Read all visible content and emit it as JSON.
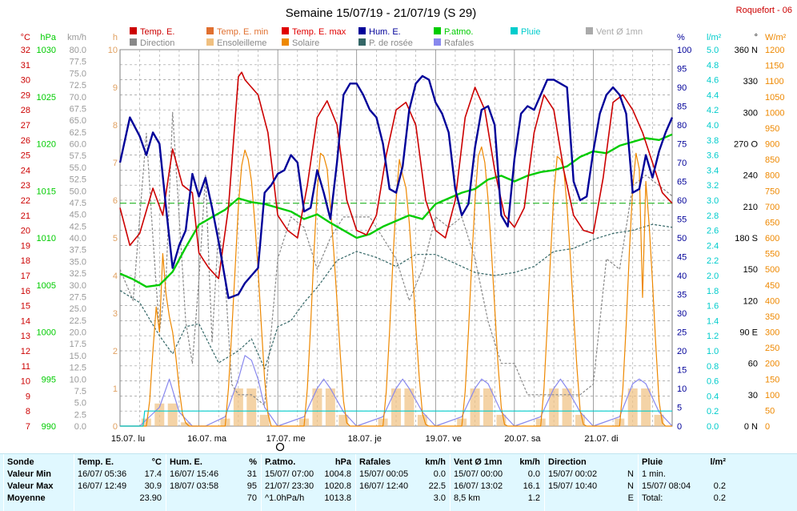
{
  "title": "Semaine 15/07/19 - 21/07/19 (S 29)",
  "station": "Roquefort - 06",
  "colors": {
    "temp": "#cc0000",
    "temp_min": "#e07030",
    "temp_max": "#e00000",
    "humidity": "#000099",
    "pressure": "#00cc00",
    "rain": "#00cccc",
    "direction": "#888888",
    "sunshine": "#f0c080",
    "solar": "#ee8800",
    "dewpoint": "#336666",
    "gusts": "#8888ee",
    "wind_avg": "#aaaaaa"
  },
  "legend": [
    {
      "label": "Temp. E.",
      "color": "#cc0000"
    },
    {
      "label": "Temp. E. min",
      "color": "#e07030"
    },
    {
      "label": "Temp. E. max",
      "color": "#e00000"
    },
    {
      "label": "Hum. E.",
      "color": "#000099"
    },
    {
      "label": "P.atmo.",
      "color": "#00cc00"
    },
    {
      "label": "Pluie",
      "color": "#00cccc"
    },
    {
      "label": "Vent Ø 1mn",
      "color": "#aaaaaa"
    },
    {
      "label": "Direction",
      "color": "#888888"
    },
    {
      "label": "Ensoleilleme",
      "color": "#f0c080"
    },
    {
      "label": "Solaire",
      "color": "#ee8800"
    },
    {
      "label": "P. de rosée",
      "color": "#336666"
    },
    {
      "label": "Rafales",
      "color": "#8888ee"
    }
  ],
  "chart_data": {
    "type": "line",
    "title": "Semaine 15/07/19 - 21/07/19 (S 29)",
    "x_categories": [
      "15.07. lu",
      "16.07. ma",
      "17.07. me",
      "18.07. je",
      "19.07. ve",
      "20.07. sa",
      "21.07. di"
    ],
    "x_unit": "hours since start of week",
    "x_range": [
      0,
      168
    ],
    "grid": true,
    "reference_line_temp": 21.8,
    "axes": {
      "temp": {
        "unit": "°C",
        "range": [
          7,
          32
        ],
        "step": 1
      },
      "pressure": {
        "unit": "hPa",
        "range": [
          990,
          1030
        ],
        "step": 5
      },
      "wind": {
        "unit": "km/h",
        "range": [
          0,
          80
        ],
        "step": 2.5
      },
      "sunshine": {
        "unit": "h",
        "range": [
          0,
          10
        ],
        "step": 1
      },
      "humidity": {
        "unit": "%",
        "range": [
          0,
          100
        ],
        "step": 5
      },
      "rain": {
        "unit": "l/m²",
        "range": [
          0,
          5
        ],
        "step": 0.2
      },
      "direction": {
        "unit": "°",
        "ticks": [
          "0 N",
          "30",
          "60",
          "90 E",
          "120",
          "150",
          "180 S",
          "210",
          "240",
          "270 O",
          "300",
          "330",
          "360 N"
        ]
      },
      "solar": {
        "unit": "W/m²",
        "range": [
          0,
          1200
        ],
        "step": 50
      }
    },
    "series": [
      {
        "name": "Temp. E.",
        "axis": "temp",
        "x": [
          0,
          3,
          6,
          10,
          13,
          16,
          19,
          22,
          24,
          27,
          30,
          33,
          36,
          37,
          38,
          42,
          45,
          48,
          51,
          54,
          57,
          60,
          63,
          66,
          69,
          72,
          75,
          78,
          81,
          84,
          87,
          90,
          93,
          96,
          99,
          102,
          105,
          108,
          111,
          114,
          117,
          120,
          123,
          126,
          129,
          132,
          135,
          138,
          141,
          144,
          147,
          150,
          153,
          156,
          159,
          162,
          165,
          168
        ],
        "y": [
          21.5,
          19.0,
          19.8,
          22.8,
          21.0,
          25.4,
          23.0,
          22.5,
          18.5,
          17.5,
          16.8,
          21.5,
          30.2,
          30.5,
          30.0,
          29.0,
          26.5,
          21.0,
          20.0,
          19.5,
          23.0,
          27.5,
          28.6,
          27.0,
          22.0,
          20.0,
          19.7,
          21.0,
          25.0,
          28.0,
          28.5,
          27.0,
          22.0,
          20.0,
          19.5,
          22.0,
          27.5,
          29.5,
          28.0,
          24.0,
          21.0,
          20.2,
          21.5,
          26.5,
          29.0,
          28.0,
          24.0,
          21.0,
          20.0,
          19.8,
          23.5,
          28.5,
          29.0,
          28.0,
          26.5,
          24.5,
          22.5,
          21.8
        ]
      },
      {
        "name": "Hum. E.",
        "axis": "humidity",
        "x": [
          0,
          3,
          6,
          8,
          10,
          12,
          14,
          16,
          18,
          20,
          22,
          24,
          26,
          28,
          30,
          33,
          36,
          38,
          40,
          42,
          44,
          46,
          48,
          50,
          52,
          54,
          56,
          58,
          60,
          62,
          64,
          66,
          68,
          70,
          72,
          74,
          76,
          78,
          80,
          82,
          84,
          86,
          88,
          90,
          92,
          94,
          96,
          98,
          100,
          102,
          104,
          106,
          108,
          110,
          112,
          114,
          116,
          118,
          120,
          122,
          124,
          126,
          128,
          130,
          132,
          134,
          136,
          138,
          140,
          142,
          144,
          146,
          148,
          150,
          152,
          154,
          156,
          158,
          160,
          162,
          164,
          166,
          168
        ],
        "y": [
          70,
          82,
          77,
          72,
          78,
          75,
          58,
          42,
          48,
          52,
          67,
          61,
          66,
          58,
          49,
          34,
          35,
          38,
          40,
          42,
          62,
          64,
          67,
          68,
          72,
          70,
          57,
          58,
          68,
          62,
          55,
          70,
          88,
          91,
          91,
          88,
          84,
          82,
          75,
          63,
          62,
          69,
          84,
          91,
          93,
          92,
          86,
          83,
          78,
          63,
          56,
          59,
          74,
          84,
          85,
          80,
          56,
          53,
          71,
          83,
          85,
          84,
          88,
          92,
          92,
          91,
          90,
          65,
          60,
          61,
          73,
          83,
          88,
          90,
          88,
          83,
          62,
          63,
          72,
          66,
          73,
          78,
          82
        ]
      },
      {
        "name": "P.atmo.",
        "axis": "pressure",
        "x": [
          0,
          4,
          8,
          12,
          16,
          20,
          24,
          28,
          32,
          36,
          40,
          44,
          48,
          52,
          56,
          60,
          64,
          68,
          72,
          76,
          80,
          84,
          88,
          92,
          96,
          100,
          104,
          108,
          112,
          116,
          120,
          124,
          128,
          132,
          136,
          140,
          144,
          148,
          152,
          156,
          160,
          164,
          168
        ],
        "y": [
          1006.2,
          1005.6,
          1004.8,
          1005.0,
          1006.4,
          1009.0,
          1011.4,
          1012.2,
          1013.0,
          1014.2,
          1013.8,
          1013.6,
          1013.2,
          1012.8,
          1012.0,
          1012.5,
          1011.6,
          1010.8,
          1010.0,
          1010.4,
          1011.2,
          1011.8,
          1012.4,
          1012.0,
          1013.6,
          1014.2,
          1014.8,
          1015.2,
          1016.2,
          1016.6,
          1016.0,
          1016.6,
          1017.0,
          1017.2,
          1017.6,
          1018.6,
          1019.2,
          1019.0,
          1019.8,
          1020.2,
          1020.6,
          1020.4,
          1021.0
        ]
      },
      {
        "name": "P. de rosée",
        "axis": "temp",
        "x": [
          0,
          6,
          12,
          16,
          20,
          24,
          30,
          36,
          40,
          44,
          48,
          52,
          56,
          60,
          66,
          72,
          78,
          84,
          90,
          96,
          102,
          108,
          114,
          120,
          126,
          132,
          138,
          144,
          150,
          156,
          162,
          168
        ],
        "y": [
          16.0,
          15.2,
          13.0,
          11.8,
          13.6,
          13.8,
          11.2,
          12.0,
          12.8,
          10.8,
          13.6,
          14.0,
          15.2,
          16.2,
          18.0,
          18.6,
          18.2,
          17.6,
          18.4,
          18.4,
          17.8,
          17.2,
          17.0,
          17.2,
          17.6,
          18.6,
          18.8,
          19.4,
          19.8,
          20.0,
          20.4,
          20.2
        ]
      },
      {
        "name": "Solaire",
        "axis": "solar",
        "x": [
          0,
          8,
          9,
          10,
          11,
          12,
          13,
          14,
          15,
          16,
          17,
          18,
          19,
          20,
          21,
          22,
          32,
          33,
          34,
          35,
          36,
          37,
          38,
          39,
          40,
          41,
          42,
          43,
          44,
          45,
          46,
          56,
          57,
          58,
          59,
          60,
          61,
          62,
          63,
          64,
          65,
          66,
          67,
          68,
          69,
          70,
          80,
          81,
          82,
          83,
          84,
          85,
          86,
          87,
          88,
          89,
          90,
          91,
          92,
          93,
          94,
          104,
          105,
          106,
          107,
          108,
          109,
          110,
          111,
          112,
          113,
          114,
          115,
          116,
          117,
          118,
          128,
          129,
          130,
          131,
          132,
          133,
          134,
          135,
          136,
          137,
          138,
          139,
          140,
          141,
          142,
          152,
          153,
          154,
          155,
          156,
          157,
          158,
          159,
          160,
          161,
          162,
          163,
          164,
          165,
          166,
          168
        ],
        "y": [
          0,
          0,
          80,
          240,
          380,
          300,
          550,
          420,
          350,
          300,
          220,
          120,
          40,
          10,
          0,
          0,
          0,
          120,
          300,
          500,
          700,
          830,
          880,
          850,
          780,
          650,
          500,
          320,
          150,
          40,
          0,
          0,
          120,
          320,
          550,
          750,
          870,
          860,
          820,
          700,
          560,
          400,
          230,
          80,
          10,
          0,
          0,
          110,
          300,
          520,
          720,
          850,
          800,
          760,
          650,
          500,
          320,
          160,
          40,
          5,
          0,
          0,
          110,
          300,
          520,
          720,
          860,
          890,
          840,
          720,
          560,
          380,
          200,
          60,
          5,
          0,
          0,
          120,
          320,
          540,
          740,
          860,
          850,
          820,
          700,
          540,
          360,
          190,
          50,
          5,
          0,
          0,
          120,
          320,
          560,
          760,
          870,
          820,
          410,
          780,
          640,
          460,
          260,
          80,
          10,
          0,
          0
        ]
      },
      {
        "name": "Ensoleilleme",
        "axis": "sunshine",
        "x": [
          8,
          12,
          16,
          20,
          32,
          36,
          40,
          44,
          56,
          60,
          64,
          68,
          80,
          84,
          88,
          92,
          104,
          108,
          112,
          116,
          128,
          132,
          136,
          140,
          152,
          156,
          160,
          164
        ],
        "y": [
          0.2,
          0.6,
          0.6,
          0.1,
          0.2,
          1.0,
          1.0,
          0.3,
          0.2,
          1.0,
          1.0,
          0.3,
          0.2,
          1.0,
          1.0,
          0.3,
          0.2,
          1.0,
          1.0,
          0.3,
          0.2,
          1.0,
          1.0,
          0.3,
          0.2,
          1.0,
          1.0,
          0.3
        ]
      },
      {
        "name": "Rafales",
        "axis": "wind",
        "x": [
          0,
          6,
          12,
          15,
          18,
          22,
          26,
          32,
          36,
          38,
          40,
          42,
          44,
          48,
          56,
          60,
          62,
          64,
          68,
          72,
          80,
          84,
          86,
          88,
          92,
          96,
          104,
          108,
          110,
          112,
          116,
          120,
          128,
          132,
          134,
          136,
          140,
          144,
          152,
          156,
          158,
          160,
          164,
          168
        ],
        "y": [
          0,
          0,
          4,
          10,
          3,
          0,
          0,
          2,
          10,
          15,
          14,
          10,
          4,
          0,
          2,
          8,
          10,
          8,
          3,
          0,
          2,
          8,
          10,
          8,
          3,
          0,
          2,
          8,
          10,
          9,
          3,
          0,
          2,
          8,
          10,
          8,
          3,
          0,
          2,
          9,
          10,
          9,
          3,
          0
        ]
      },
      {
        "name": "Direction",
        "axis": "direction",
        "x": [
          0,
          4,
          8,
          10,
          12,
          14,
          16,
          18,
          20,
          22,
          24,
          26,
          28,
          30,
          32,
          34,
          36,
          40,
          44,
          48,
          52,
          56,
          60,
          64,
          68,
          72,
          76,
          80,
          84,
          88,
          92,
          96,
          100,
          104,
          108,
          112,
          116,
          120,
          124,
          128,
          132,
          136,
          140,
          144,
          148,
          152,
          156,
          160,
          164,
          168
        ],
        "y": [
          150,
          120,
          280,
          180,
          90,
          140,
          300,
          200,
          100,
          60,
          140,
          240,
          80,
          190,
          140,
          40,
          30,
          30,
          20,
          160,
          200,
          190,
          150,
          180,
          200,
          200,
          200,
          180,
          160,
          120,
          150,
          200,
          190,
          200,
          160,
          100,
          60,
          60,
          30,
          30,
          30,
          30,
          30,
          40,
          160,
          150,
          230,
          240,
          230,
          220
        ]
      },
      {
        "name": "Pluie",
        "axis": "rain",
        "x": [
          0,
          7,
          7.5,
          168
        ],
        "y": [
          0,
          0,
          0.2,
          0.2
        ]
      }
    ]
  },
  "stats": {
    "blocks": [
      {
        "head": "Sonde",
        "rows": [
          "Valeur Min",
          "Valeur Max",
          "Moyenne"
        ]
      },
      {
        "head": "Temp. E.",
        "unit": "°C",
        "rows": [
          [
            "16/07/ 05:36",
            "17.4"
          ],
          [
            "16/07/ 12:49",
            "30.9"
          ],
          [
            "",
            "23.90"
          ]
        ]
      },
      {
        "head": "Hum. E.",
        "unit": "%",
        "rows": [
          [
            "16/07/ 15:46",
            "31"
          ],
          [
            "18/07/ 03:58",
            "95"
          ],
          [
            "",
            "70"
          ]
        ]
      },
      {
        "head": "P.atmo.",
        "unit": "hPa",
        "rows": [
          [
            "15/07/ 07:00",
            "1004.8"
          ],
          [
            "21/07/ 23:30",
            "1020.8"
          ],
          [
            "^1.0hPa/h",
            "1013.8"
          ]
        ]
      },
      {
        "head": "Rafales",
        "unit": "km/h",
        "rows": [
          [
            "15/07/ 00:05",
            "0.0"
          ],
          [
            "16/07/ 12:40",
            "22.5"
          ],
          [
            "",
            "3.0"
          ]
        ]
      },
      {
        "head": "Vent Ø 1mn",
        "unit": "km/h",
        "rows": [
          [
            "15/07/ 00:00",
            "0.0"
          ],
          [
            "16/07/ 13:02",
            "16.1"
          ],
          [
            "8,5 km",
            "1.2"
          ]
        ]
      },
      {
        "head": "Direction",
        "unit": "",
        "rows": [
          [
            "15/07/ 00:02",
            "N"
          ],
          [
            "15/07/ 10:40",
            "N"
          ],
          [
            "",
            "E"
          ]
        ]
      },
      {
        "head": "Pluie",
        "unit": "l/m²",
        "rows": [
          [
            "1 min.",
            ""
          ],
          [
            "15/07/ 08:04",
            "0.2"
          ],
          [
            "Total:",
            "0.2"
          ]
        ]
      }
    ]
  }
}
